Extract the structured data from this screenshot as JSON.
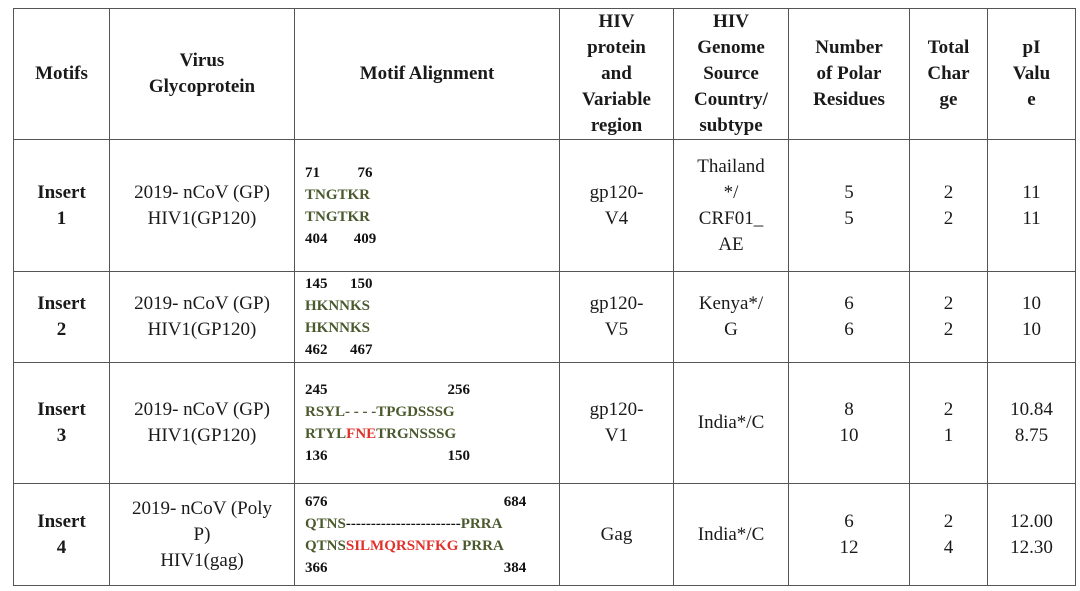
{
  "headers": {
    "motifs": "Motifs",
    "virus_glycoprotein": [
      "Virus",
      "Glycoprotein"
    ],
    "motif_alignment": "Motif Alignment",
    "hiv_protein": [
      "HIV",
      "protein",
      "and",
      "Variable",
      "region"
    ],
    "hiv_genome": [
      "HIV",
      "Genome",
      "Source",
      "Country/",
      "subtype"
    ],
    "polar_residues": [
      "Number",
      "of Polar",
      "Residues"
    ],
    "total_charge": [
      "Total",
      "Char",
      "ge"
    ],
    "pi_value": [
      "pI",
      "Valu",
      "e"
    ]
  },
  "rows": [
    {
      "motif": [
        "Insert",
        "1"
      ],
      "glycoprotein": [
        "2019- nCoV (GP)",
        "HIV1(GP120)"
      ],
      "align_top": "71          76",
      "seq1": "TNGTKR",
      "seq2": "TNGTKR",
      "align_bottom": "404       409",
      "hiv_protein": [
        "gp120-",
        "V4"
      ],
      "country": [
        "Thailand",
        "*/",
        "CRF01_",
        "AE"
      ],
      "polar": [
        "5",
        "5"
      ],
      "charge": [
        "2",
        "2"
      ],
      "pi": [
        "11",
        "11"
      ]
    },
    {
      "motif": [
        "Insert",
        "2"
      ],
      "glycoprotein": [
        "2019- nCoV (GP)",
        "HIV1(GP120)"
      ],
      "align_top": "145      150",
      "seq1": "HKNNKS",
      "seq2": "HKNNKS",
      "align_bottom": "462      467",
      "hiv_protein": [
        "gp120-",
        "V5"
      ],
      "country": [
        "Kenya*/",
        "G"
      ],
      "polar": [
        "6",
        "6"
      ],
      "charge": [
        "2",
        "2"
      ],
      "pi": [
        "10",
        "10"
      ]
    },
    {
      "motif": [
        "Insert",
        "3"
      ],
      "glycoprotein": [
        "2019- nCoV (GP)",
        "HIV1(GP120)"
      ],
      "align_top": "245                                256",
      "seq1": "RSYL- - - -TPGDSSSG",
      "seq2_a": "RTYL",
      "seq2_b": "FNE",
      "seq2_c": "TRGNSSSG",
      "align_bottom": "136                                150",
      "hiv_protein": [
        "gp120-",
        "V1"
      ],
      "country": [
        "India*/C"
      ],
      "polar": [
        "8",
        "10"
      ],
      "charge": [
        "2",
        "1"
      ],
      "pi": [
        "10.84",
        "8.75"
      ]
    },
    {
      "motif": [
        "Insert",
        "4"
      ],
      "glycoprotein": [
        "2019- nCoV (Poly",
        "P)",
        "HIV1(gag)"
      ],
      "align_top": "676                                               684",
      "seq1_a": "QTNS",
      "seq1_b": "-----------------------",
      "seq1_c": "PRRA",
      "seq2_a": "QTNS",
      "seq2_b": "SILMQRSNFKG",
      "seq2_c": " PRRA",
      "align_bottom": "366                                               384",
      "hiv_protein": [
        "Gag"
      ],
      "country": [
        "India*/C"
      ],
      "polar": [
        "6",
        "12"
      ],
      "charge": [
        "2",
        "4"
      ],
      "pi": [
        "12.00",
        "12.30"
      ]
    }
  ]
}
